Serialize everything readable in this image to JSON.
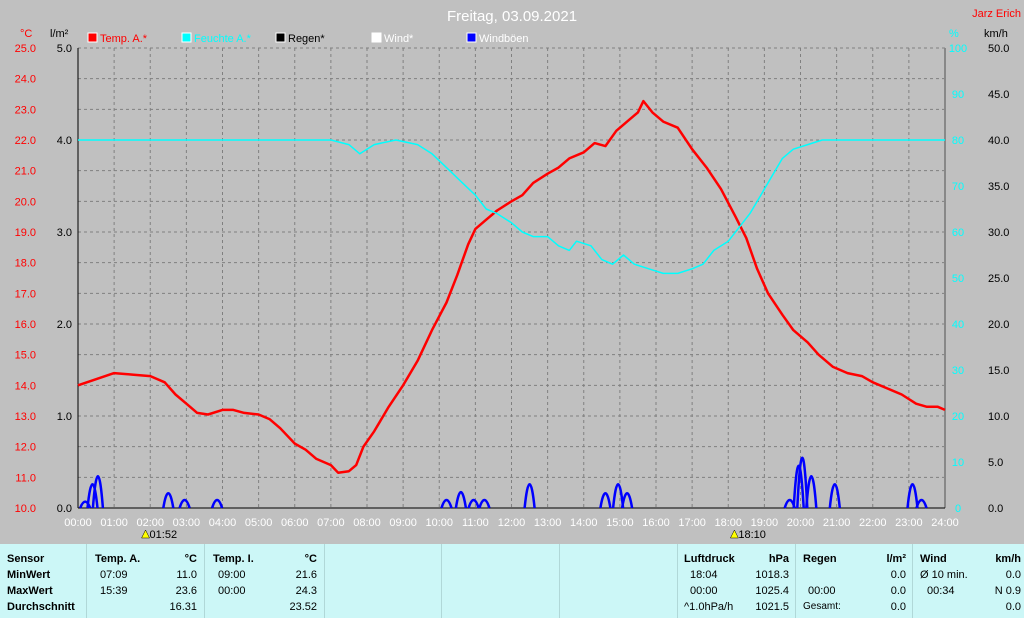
{
  "title": "Freitag, 03.09.2021",
  "author": "Jarz Erich",
  "units": {
    "celsius": "°C",
    "rain": "l/m²",
    "percent": "%",
    "speed": "km/h"
  },
  "legend": [
    {
      "label": "Temp. A.*",
      "color": "#ff0000"
    },
    {
      "label": "Feuchte A.*",
      "color": "#00ffff"
    },
    {
      "label": "Regen*",
      "color": "#000000"
    },
    {
      "label": "Wind*",
      "color": "#ffffff"
    },
    {
      "label": "Windböen",
      "color": "#0000ff"
    }
  ],
  "markers": [
    {
      "label": "01:52",
      "x": 1.87
    },
    {
      "label": "18:10",
      "x": 18.17
    }
  ],
  "chart_data": {
    "type": "line",
    "x_ticks": [
      "00:00",
      "01:00",
      "02:00",
      "03:00",
      "04:00",
      "05:00",
      "06:00",
      "07:00",
      "08:00",
      "09:00",
      "10:00",
      "11:00",
      "12:00",
      "13:00",
      "14:00",
      "15:00",
      "16:00",
      "17:00",
      "18:00",
      "19:00",
      "20:00",
      "21:00",
      "22:00",
      "23:00",
      "24:00"
    ],
    "xlim": [
      0,
      24
    ],
    "axes": {
      "temp": {
        "ylim": [
          10,
          25
        ],
        "ticks": [
          "10.0",
          "11.0",
          "12.0",
          "13.0",
          "14.0",
          "15.0",
          "16.0",
          "17.0",
          "18.0",
          "19.0",
          "20.0",
          "21.0",
          "22.0",
          "23.0",
          "24.0",
          "25.0"
        ]
      },
      "rain": {
        "ylim": [
          0,
          5
        ],
        "ticks": [
          "0.0",
          "1.0",
          "2.0",
          "3.0",
          "4.0",
          "5.0"
        ]
      },
      "humidity": {
        "ylim": [
          0,
          100
        ],
        "ticks": [
          "0",
          "10",
          "20",
          "30",
          "40",
          "50",
          "60",
          "70",
          "80",
          "90",
          "100"
        ]
      },
      "wind": {
        "ylim": [
          0,
          50
        ],
        "ticks": [
          "0.0",
          "5.0",
          "10.0",
          "15.0",
          "20.0",
          "25.0",
          "30.0",
          "35.0",
          "40.0",
          "45.0",
          "50.0"
        ]
      }
    },
    "series": [
      {
        "name": "Temp. A.*",
        "axis": "temp",
        "color": "#ff0000",
        "points": [
          [
            0,
            14.0
          ],
          [
            0.5,
            14.2
          ],
          [
            1,
            14.4
          ],
          [
            1.5,
            14.35
          ],
          [
            2,
            14.3
          ],
          [
            2.4,
            14.1
          ],
          [
            2.7,
            13.7
          ],
          [
            3,
            13.4
          ],
          [
            3.3,
            13.1
          ],
          [
            3.6,
            13.05
          ],
          [
            4,
            13.2
          ],
          [
            4.3,
            13.2
          ],
          [
            4.6,
            13.1
          ],
          [
            5,
            13.05
          ],
          [
            5.3,
            12.9
          ],
          [
            5.6,
            12.6
          ],
          [
            6,
            12.1
          ],
          [
            6.3,
            11.9
          ],
          [
            6.6,
            11.6
          ],
          [
            7,
            11.4
          ],
          [
            7.2,
            11.15
          ],
          [
            7.5,
            11.2
          ],
          [
            7.7,
            11.4
          ],
          [
            7.9,
            12.0
          ],
          [
            8.2,
            12.5
          ],
          [
            8.6,
            13.3
          ],
          [
            9,
            14.0
          ],
          [
            9.4,
            14.8
          ],
          [
            9.8,
            15.8
          ],
          [
            10.2,
            16.7
          ],
          [
            10.5,
            17.6
          ],
          [
            10.8,
            18.6
          ],
          [
            11,
            19.1
          ],
          [
            11.3,
            19.4
          ],
          [
            11.6,
            19.7
          ],
          [
            12,
            20.0
          ],
          [
            12.3,
            20.2
          ],
          [
            12.6,
            20.6
          ],
          [
            13,
            20.9
          ],
          [
            13.3,
            21.1
          ],
          [
            13.6,
            21.4
          ],
          [
            14,
            21.6
          ],
          [
            14.3,
            21.9
          ],
          [
            14.6,
            21.8
          ],
          [
            14.9,
            22.3
          ],
          [
            15.2,
            22.6
          ],
          [
            15.5,
            22.9
          ],
          [
            15.65,
            23.27
          ],
          [
            15.9,
            22.9
          ],
          [
            16.2,
            22.6
          ],
          [
            16.6,
            22.4
          ],
          [
            17,
            21.7
          ],
          [
            17.4,
            21.1
          ],
          [
            17.8,
            20.4
          ],
          [
            18.2,
            19.5
          ],
          [
            18.5,
            18.8
          ],
          [
            18.8,
            17.8
          ],
          [
            19.1,
            17.0
          ],
          [
            19.5,
            16.3
          ],
          [
            19.8,
            15.8
          ],
          [
            20.2,
            15.4
          ],
          [
            20.5,
            15.0
          ],
          [
            20.9,
            14.6
          ],
          [
            21.3,
            14.4
          ],
          [
            21.7,
            14.3
          ],
          [
            22,
            14.1
          ],
          [
            22.4,
            13.9
          ],
          [
            22.8,
            13.7
          ],
          [
            23.2,
            13.4
          ],
          [
            23.5,
            13.3
          ],
          [
            23.8,
            13.3
          ],
          [
            24,
            13.2
          ]
        ]
      },
      {
        "name": "Feuchte A.*",
        "axis": "humidity",
        "color": "#00ffff",
        "points": [
          [
            0,
            80
          ],
          [
            1,
            80
          ],
          [
            2,
            80
          ],
          [
            3,
            80
          ],
          [
            4,
            80
          ],
          [
            5,
            80
          ],
          [
            6,
            80
          ],
          [
            7,
            80
          ],
          [
            7.5,
            79
          ],
          [
            7.8,
            77
          ],
          [
            8.2,
            79
          ],
          [
            8.8,
            80
          ],
          [
            9.4,
            79
          ],
          [
            9.8,
            77
          ],
          [
            10.2,
            74
          ],
          [
            10.6,
            71
          ],
          [
            11,
            68
          ],
          [
            11.3,
            65
          ],
          [
            11.6,
            64
          ],
          [
            12,
            62
          ],
          [
            12.3,
            60
          ],
          [
            12.6,
            59
          ],
          [
            13,
            59
          ],
          [
            13.3,
            57
          ],
          [
            13.6,
            56
          ],
          [
            13.8,
            58
          ],
          [
            14.2,
            57
          ],
          [
            14.5,
            54
          ],
          [
            14.8,
            53
          ],
          [
            15.1,
            55
          ],
          [
            15.4,
            53
          ],
          [
            15.8,
            52
          ],
          [
            16.2,
            51
          ],
          [
            16.6,
            51
          ],
          [
            17,
            52
          ],
          [
            17.3,
            53
          ],
          [
            17.6,
            56
          ],
          [
            18,
            58
          ],
          [
            18.3,
            61
          ],
          [
            18.6,
            64
          ],
          [
            18.9,
            68
          ],
          [
            19.2,
            72
          ],
          [
            19.5,
            76
          ],
          [
            19.8,
            78
          ],
          [
            20.2,
            79
          ],
          [
            20.6,
            80
          ],
          [
            21,
            80
          ],
          [
            22,
            80
          ],
          [
            23,
            80
          ],
          [
            24,
            80
          ]
        ]
      },
      {
        "name": "Windböen",
        "axis": "wind",
        "color": "#0000ff",
        "bursts": [
          [
            0.2,
            1.2
          ],
          [
            0.4,
            4.5
          ],
          [
            0.55,
            6.0
          ],
          [
            2.5,
            2.8
          ],
          [
            2.95,
            1.5
          ],
          [
            3.85,
            1.5
          ],
          [
            10.2,
            1.5
          ],
          [
            10.6,
            3.0
          ],
          [
            10.95,
            1.5
          ],
          [
            11.25,
            1.5
          ],
          [
            12.5,
            4.5
          ],
          [
            14.6,
            2.8
          ],
          [
            14.95,
            4.5
          ],
          [
            15.2,
            2.8
          ],
          [
            19.7,
            1.5
          ],
          [
            19.95,
            8.0
          ],
          [
            20.05,
            9.5
          ],
          [
            20.3,
            6.0
          ],
          [
            20.95,
            4.5
          ],
          [
            23.1,
            4.5
          ],
          [
            23.35,
            1.5
          ]
        ]
      }
    ]
  },
  "table": {
    "sensor": {
      "header": "Sensor",
      "rows": [
        "MinWert",
        "MaxWert",
        "Durchschnitt"
      ]
    },
    "temp_a": {
      "header": "Temp. A.",
      "unit": "°C",
      "rows": [
        [
          "07:09",
          "11.0"
        ],
        [
          "15:39",
          "23.6"
        ],
        [
          "",
          "16.31"
        ]
      ]
    },
    "temp_i": {
      "header": "Temp. I.",
      "unit": "°C",
      "rows": [
        [
          "09:00",
          "21.6"
        ],
        [
          "00:00",
          "24.3"
        ],
        [
          "",
          "23.52"
        ]
      ]
    },
    "luftdruck": {
      "header": "Luftdruck",
      "unit": "hPa",
      "rows": [
        [
          "18:04",
          "1018.3"
        ],
        [
          "00:00",
          "1025.4"
        ],
        [
          "^1.0hPa/h",
          "1021.5"
        ]
      ]
    },
    "regen": {
      "header": "Regen",
      "unit": "l/m²",
      "rows": [
        [
          "",
          ""
        ],
        [
          "00:00",
          "0.0"
        ],
        [
          "Gesamt:",
          "0.0"
        ]
      ],
      "row1_value": "0.0"
    },
    "wind": {
      "header": "Wind",
      "unit": "km/h",
      "rows": [
        [
          "Ø 10 min.",
          "0.0"
        ],
        [
          "00:34",
          "N 0.9"
        ],
        [
          "",
          "0.0"
        ]
      ]
    }
  }
}
